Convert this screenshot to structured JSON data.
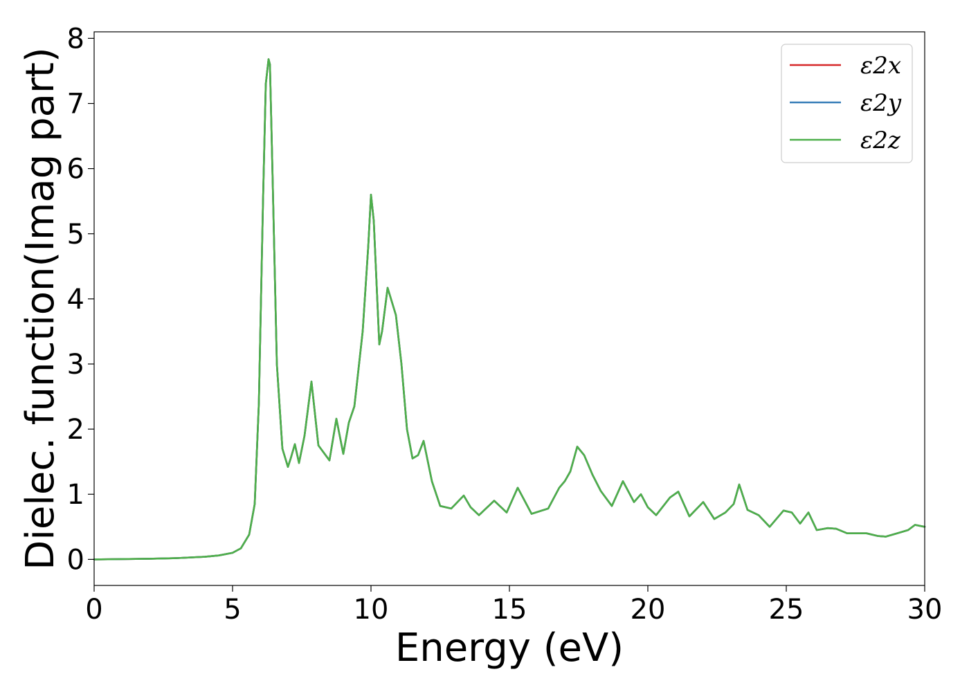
{
  "chart_data": {
    "type": "line",
    "title": "",
    "xlabel": "Energy (eV)",
    "ylabel": "Dielec. function(Imag part)",
    "xlim": [
      0,
      30
    ],
    "ylim": [
      -0.4,
      8.1
    ],
    "xticks": [
      0,
      5,
      10,
      15,
      20,
      25,
      30
    ],
    "yticks": [
      0,
      1,
      2,
      3,
      4,
      5,
      6,
      7,
      8
    ],
    "grid": false,
    "legend_position": "top-right",
    "x": [
      0,
      1,
      2,
      3,
      4,
      4.5,
      5,
      5.3,
      5.6,
      5.8,
      5.95,
      6.1,
      6.2,
      6.3,
      6.35,
      6.45,
      6.6,
      6.8,
      7.0,
      7.1,
      7.25,
      7.4,
      7.6,
      7.85,
      8.1,
      8.5,
      8.75,
      9.0,
      9.2,
      9.4,
      9.7,
      9.9,
      10.0,
      10.1,
      10.3,
      10.4,
      10.6,
      10.9,
      11.1,
      11.3,
      11.5,
      11.7,
      11.9,
      12.2,
      12.5,
      12.9,
      13.35,
      13.6,
      13.9,
      14.45,
      14.9,
      15.3,
      15.8,
      16.4,
      16.8,
      17.0,
      17.2,
      17.45,
      17.7,
      18.0,
      18.3,
      18.7,
      19.1,
      19.5,
      19.75,
      20.0,
      20.3,
      20.8,
      21.1,
      21.5,
      22.0,
      22.4,
      22.8,
      23.1,
      23.3,
      23.6,
      24.0,
      24.4,
      24.9,
      25.2,
      25.5,
      25.8,
      26.1,
      26.5,
      26.8,
      27.2,
      27.9,
      28.3,
      28.6,
      29.0,
      29.4,
      29.65,
      30.0
    ],
    "series": [
      {
        "name": "ε2x",
        "color": "#d62728",
        "values": [
          0.0,
          0.005,
          0.01,
          0.02,
          0.04,
          0.06,
          0.1,
          0.17,
          0.38,
          0.85,
          2.4,
          5.5,
          7.3,
          7.68,
          7.6,
          5.8,
          3.0,
          1.7,
          1.42,
          1.55,
          1.77,
          1.48,
          1.9,
          2.73,
          1.75,
          1.52,
          2.16,
          1.62,
          2.1,
          2.35,
          3.5,
          4.8,
          5.6,
          5.2,
          3.3,
          3.5,
          4.17,
          3.75,
          3.0,
          2.0,
          1.55,
          1.6,
          1.82,
          1.2,
          0.82,
          0.78,
          0.98,
          0.8,
          0.68,
          0.9,
          0.72,
          1.1,
          0.7,
          0.78,
          1.1,
          1.2,
          1.35,
          1.73,
          1.6,
          1.3,
          1.05,
          0.82,
          1.2,
          0.88,
          1.0,
          0.8,
          0.68,
          0.95,
          1.04,
          0.66,
          0.88,
          0.62,
          0.72,
          0.85,
          1.15,
          0.76,
          0.68,
          0.5,
          0.75,
          0.72,
          0.55,
          0.72,
          0.45,
          0.48,
          0.47,
          0.4,
          0.4,
          0.36,
          0.35,
          0.4,
          0.45,
          0.53,
          0.5
        ]
      },
      {
        "name": "ε2y",
        "color": "#377eb8",
        "values": [
          0.0,
          0.005,
          0.01,
          0.02,
          0.04,
          0.06,
          0.1,
          0.17,
          0.38,
          0.85,
          2.4,
          5.5,
          7.3,
          7.68,
          7.6,
          5.8,
          3.0,
          1.7,
          1.42,
          1.55,
          1.77,
          1.48,
          1.9,
          2.73,
          1.75,
          1.52,
          2.16,
          1.62,
          2.1,
          2.35,
          3.5,
          4.8,
          5.6,
          5.2,
          3.3,
          3.5,
          4.17,
          3.75,
          3.0,
          2.0,
          1.55,
          1.6,
          1.82,
          1.2,
          0.82,
          0.78,
          0.98,
          0.8,
          0.68,
          0.9,
          0.72,
          1.1,
          0.7,
          0.78,
          1.1,
          1.2,
          1.35,
          1.73,
          1.6,
          1.3,
          1.05,
          0.82,
          1.2,
          0.88,
          1.0,
          0.8,
          0.68,
          0.95,
          1.04,
          0.66,
          0.88,
          0.62,
          0.72,
          0.85,
          1.15,
          0.76,
          0.68,
          0.5,
          0.75,
          0.72,
          0.55,
          0.72,
          0.45,
          0.48,
          0.47,
          0.4,
          0.4,
          0.36,
          0.35,
          0.4,
          0.45,
          0.53,
          0.5
        ]
      },
      {
        "name": "ε2z",
        "color": "#4daf4a",
        "values": [
          0.0,
          0.005,
          0.01,
          0.02,
          0.04,
          0.06,
          0.1,
          0.17,
          0.38,
          0.85,
          2.4,
          5.5,
          7.3,
          7.68,
          7.6,
          5.8,
          3.0,
          1.7,
          1.42,
          1.55,
          1.77,
          1.48,
          1.9,
          2.73,
          1.75,
          1.52,
          2.16,
          1.62,
          2.1,
          2.35,
          3.5,
          4.8,
          5.6,
          5.2,
          3.3,
          3.5,
          4.17,
          3.75,
          3.0,
          2.0,
          1.55,
          1.6,
          1.82,
          1.2,
          0.82,
          0.78,
          0.98,
          0.8,
          0.68,
          0.9,
          0.72,
          1.1,
          0.7,
          0.78,
          1.1,
          1.2,
          1.35,
          1.73,
          1.6,
          1.3,
          1.05,
          0.82,
          1.2,
          0.88,
          1.0,
          0.8,
          0.68,
          0.95,
          1.04,
          0.66,
          0.88,
          0.62,
          0.72,
          0.85,
          1.15,
          0.76,
          0.68,
          0.5,
          0.75,
          0.72,
          0.55,
          0.72,
          0.45,
          0.48,
          0.47,
          0.4,
          0.4,
          0.36,
          0.35,
          0.4,
          0.45,
          0.53,
          0.5
        ]
      }
    ]
  }
}
